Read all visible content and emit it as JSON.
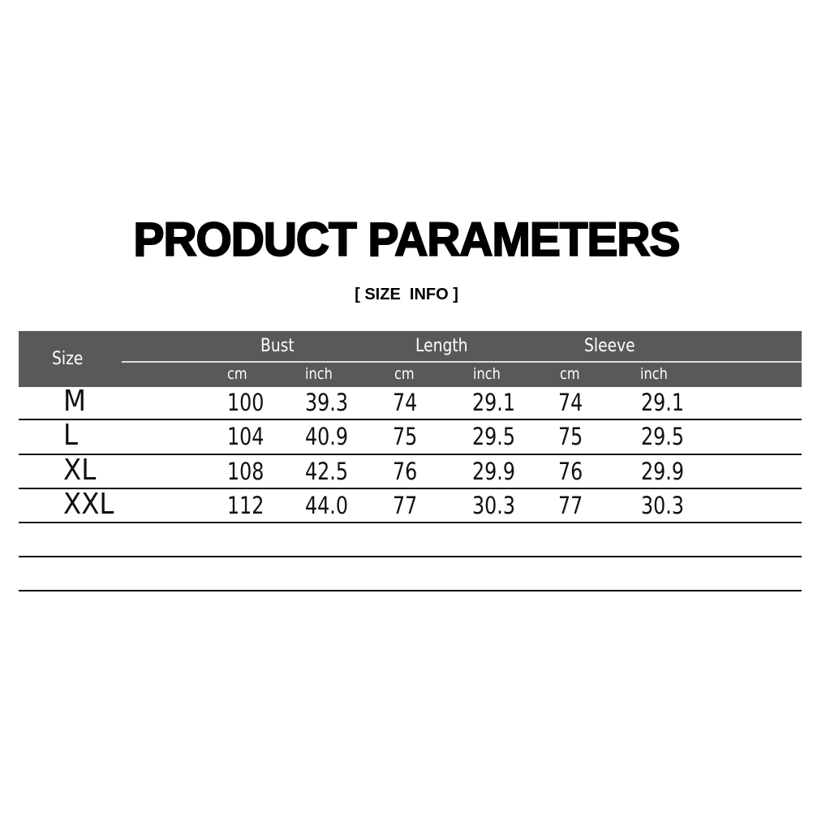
{
  "title": "PRODUCT PARAMETERS",
  "subtitle": "[ SIZE  INFO ]",
  "table": {
    "size_header": "Size",
    "groups": [
      "Bust",
      "Length",
      "Sleeve"
    ],
    "units": [
      "cm",
      "inch",
      "cm",
      "inch",
      "cm",
      "inch"
    ],
    "header_color": "#595959",
    "rows": [
      {
        "size": "M",
        "values": [
          "100",
          "39.3",
          "74",
          "29.1",
          "74",
          "29.1"
        ]
      },
      {
        "size": "L",
        "values": [
          "104",
          "40.9",
          "75",
          "29.5",
          "75",
          "29.5"
        ]
      },
      {
        "size": "XL",
        "values": [
          "108",
          "42.5",
          "76",
          "29.9",
          "76",
          "29.9"
        ]
      },
      {
        "size": "XXL",
        "values": [
          "112",
          "44.0",
          "77",
          "30.3",
          "77",
          "30.3"
        ]
      }
    ]
  }
}
